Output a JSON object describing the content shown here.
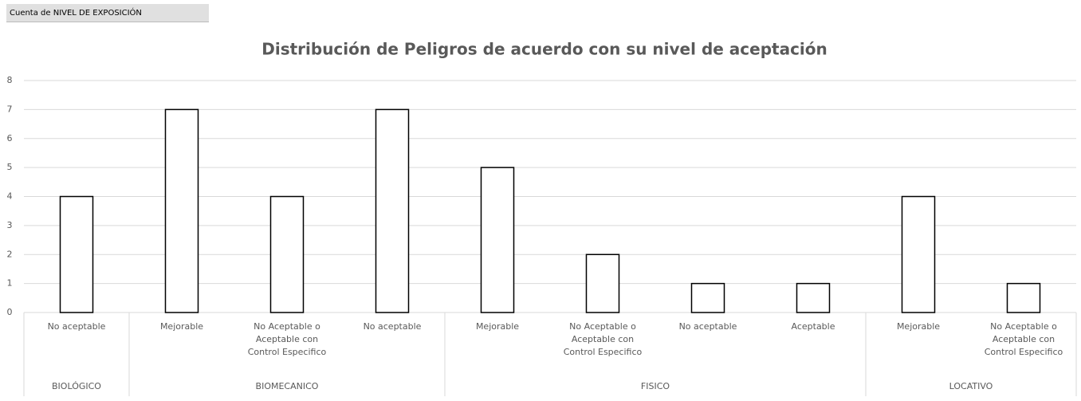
{
  "field_button": "Cuenta de NIVEL DE EXPOSICIÓN",
  "chart_data": {
    "type": "bar",
    "title": "Distribución de Peligros de acuerdo con su nivel de aceptación",
    "categories": [
      "No aceptable",
      "Mejorable",
      "No Aceptable o Aceptable con Control Especifico",
      "No aceptable",
      "Mejorable",
      "No Aceptable o Aceptable con Control Especifico",
      "No aceptable",
      "Aceptable",
      "Mejorable",
      "No Aceptable o Aceptable con Control Especifico"
    ],
    "groups": [
      {
        "name": "BIOLÓGICO",
        "count": 1
      },
      {
        "name": "BIOMECANICO",
        "count": 3
      },
      {
        "name": "FISICO",
        "count": 4
      },
      {
        "name": "LOCATIVO",
        "count": 2
      }
    ],
    "values": [
      4,
      7,
      4,
      7,
      5,
      2,
      1,
      1,
      4,
      1
    ],
    "color": "#ffffff",
    "edge_color": "#000000",
    "ylim": [
      0,
      8
    ],
    "yticks": [
      0,
      1,
      2,
      3,
      4,
      5,
      6,
      7,
      8
    ],
    "grid": true
  }
}
